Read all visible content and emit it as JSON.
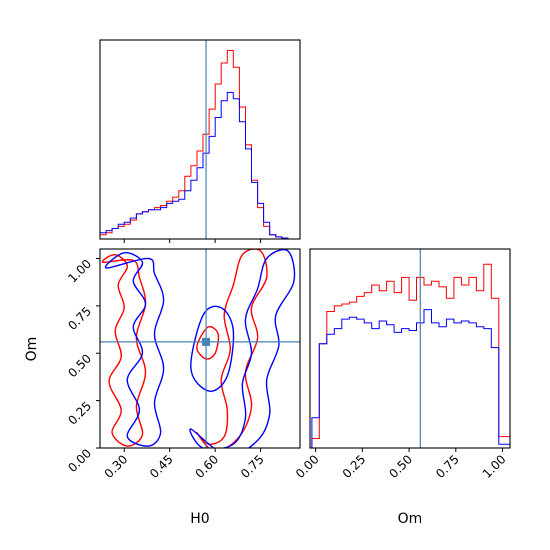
{
  "chart_data": [
    {
      "type": "histogram",
      "panel": "H0 marginal",
      "xlim": [
        0.22,
        0.88
      ],
      "truth": 0.57,
      "series": [
        {
          "color": "#ff0000",
          "bin_edges": [
            0.22,
            0.24,
            0.26,
            0.28,
            0.3,
            0.32,
            0.34,
            0.36,
            0.38,
            0.4,
            0.42,
            0.44,
            0.46,
            0.48,
            0.5,
            0.52,
            0.54,
            0.56,
            0.58,
            0.6,
            0.62,
            0.64,
            0.66,
            0.68,
            0.7,
            0.72,
            0.74,
            0.76,
            0.78,
            0.8,
            0.82,
            0.84,
            0.86,
            0.88
          ],
          "values": [
            0.02,
            0.03,
            0.05,
            0.06,
            0.07,
            0.09,
            0.12,
            0.13,
            0.14,
            0.15,
            0.16,
            0.18,
            0.2,
            0.23,
            0.3,
            0.35,
            0.42,
            0.5,
            0.62,
            0.74,
            0.84,
            0.9,
            0.82,
            0.63,
            0.45,
            0.28,
            0.15,
            0.06,
            0.02,
            0.01,
            0.005,
            0.0,
            0.0
          ]
        },
        {
          "color": "#0000ff",
          "bin_edges": [
            0.22,
            0.24,
            0.26,
            0.28,
            0.3,
            0.32,
            0.34,
            0.36,
            0.38,
            0.4,
            0.42,
            0.44,
            0.46,
            0.48,
            0.5,
            0.52,
            0.54,
            0.56,
            0.58,
            0.6,
            0.62,
            0.64,
            0.66,
            0.68,
            0.7,
            0.72,
            0.74,
            0.76,
            0.78,
            0.8,
            0.82,
            0.84,
            0.86,
            0.88
          ],
          "values": [
            0.03,
            0.04,
            0.05,
            0.07,
            0.08,
            0.1,
            0.12,
            0.13,
            0.14,
            0.14,
            0.15,
            0.17,
            0.18,
            0.19,
            0.23,
            0.28,
            0.34,
            0.41,
            0.49,
            0.58,
            0.66,
            0.7,
            0.67,
            0.56,
            0.43,
            0.27,
            0.17,
            0.08,
            0.02,
            0.01,
            0.005,
            0.0,
            0.0
          ]
        }
      ]
    },
    {
      "type": "contour",
      "panel": "Om vs H0 joint",
      "xlabel": "H0",
      "ylabel": "Om",
      "xlim": [
        0.22,
        0.88
      ],
      "ylim": [
        0.0,
        1.05
      ],
      "xticks": [
        "0.30",
        "0.45",
        "0.60",
        "0.75"
      ],
      "yticks": [
        "0.00",
        "0.25",
        "0.50",
        "0.75",
        "1.00"
      ],
      "truth": {
        "H0": 0.57,
        "Om": 0.56
      },
      "marker_color": "#4682b4",
      "contours": [
        {
          "color": "#ff0000",
          "points": [
            [
              0.23,
              0.98
            ],
            [
              0.27,
              1.02
            ],
            [
              0.31,
              0.96
            ],
            [
              0.28,
              0.86
            ],
            [
              0.3,
              0.74
            ],
            [
              0.27,
              0.62
            ],
            [
              0.29,
              0.48
            ],
            [
              0.25,
              0.35
            ],
            [
              0.29,
              0.2
            ],
            [
              0.26,
              0.08
            ],
            [
              0.31,
              0.01
            ],
            [
              0.36,
              0.07
            ],
            [
              0.34,
              0.22
            ],
            [
              0.37,
              0.4
            ],
            [
              0.34,
              0.58
            ],
            [
              0.37,
              0.76
            ],
            [
              0.35,
              0.9
            ],
            [
              0.33,
              0.99
            ]
          ]
        },
        {
          "color": "#0000ff",
          "points": [
            [
              0.24,
              0.95
            ],
            [
              0.3,
              1.03
            ],
            [
              0.36,
              0.98
            ],
            [
              0.33,
              0.88
            ],
            [
              0.37,
              0.76
            ],
            [
              0.33,
              0.64
            ],
            [
              0.36,
              0.5
            ],
            [
              0.31,
              0.36
            ],
            [
              0.35,
              0.2
            ],
            [
              0.31,
              0.06
            ],
            [
              0.38,
              0.01
            ],
            [
              0.42,
              0.08
            ],
            [
              0.4,
              0.24
            ],
            [
              0.43,
              0.42
            ],
            [
              0.4,
              0.6
            ],
            [
              0.43,
              0.78
            ],
            [
              0.4,
              0.92
            ],
            [
              0.38,
              1.0
            ]
          ]
        },
        {
          "color": "#ff0000",
          "points": [
            [
              0.54,
              0.08
            ],
            [
              0.58,
              0.02
            ],
            [
              0.63,
              0.06
            ],
            [
              0.64,
              0.2
            ],
            [
              0.62,
              0.36
            ],
            [
              0.65,
              0.52
            ],
            [
              0.63,
              0.7
            ],
            [
              0.66,
              0.86
            ],
            [
              0.69,
              1.02
            ],
            [
              0.75,
              1.04
            ],
            [
              0.77,
              0.9
            ],
            [
              0.72,
              0.74
            ],
            [
              0.74,
              0.58
            ],
            [
              0.7,
              0.4
            ],
            [
              0.72,
              0.22
            ],
            [
              0.68,
              0.06
            ],
            [
              0.6,
              -0.02
            ]
          ]
        },
        {
          "color": "#0000ff",
          "points": [
            [
              0.52,
              0.1
            ],
            [
              0.56,
              0.0
            ],
            [
              0.66,
              0.02
            ],
            [
              0.7,
              0.16
            ],
            [
              0.69,
              0.34
            ],
            [
              0.72,
              0.5
            ],
            [
              0.7,
              0.68
            ],
            [
              0.74,
              0.84
            ],
            [
              0.77,
              1.0
            ],
            [
              0.84,
              1.04
            ],
            [
              0.86,
              0.88
            ],
            [
              0.8,
              0.7
            ],
            [
              0.81,
              0.54
            ],
            [
              0.77,
              0.36
            ],
            [
              0.78,
              0.18
            ],
            [
              0.74,
              0.04
            ],
            [
              0.64,
              -0.04
            ]
          ]
        },
        {
          "color": "#ff0000",
          "points": [
            [
              0.55,
              0.58
            ],
            [
              0.58,
              0.64
            ],
            [
              0.61,
              0.6
            ],
            [
              0.6,
              0.5
            ],
            [
              0.57,
              0.47
            ],
            [
              0.54,
              0.52
            ]
          ]
        },
        {
          "color": "#0000ff",
          "points": [
            [
              0.52,
              0.42
            ],
            [
              0.56,
              0.7
            ],
            [
              0.62,
              0.74
            ],
            [
              0.66,
              0.62
            ],
            [
              0.64,
              0.38
            ],
            [
              0.58,
              0.3
            ]
          ]
        }
      ]
    },
    {
      "type": "histogram",
      "panel": "Om marginal",
      "xlabel": "Om",
      "xlim": [
        -0.03,
        1.04
      ],
      "xticks": [
        "0.00",
        "0.25",
        "0.50",
        "0.75",
        "1.00"
      ],
      "truth": 0.56,
      "series": [
        {
          "color": "#ff0000",
          "bin_edges": [
            -0.02,
            0.02,
            0.06,
            0.1,
            0.14,
            0.18,
            0.22,
            0.26,
            0.3,
            0.34,
            0.38,
            0.42,
            0.46,
            0.5,
            0.54,
            0.58,
            0.62,
            0.66,
            0.7,
            0.74,
            0.78,
            0.82,
            0.86,
            0.9,
            0.94,
            0.98,
            1.04
          ],
          "values": [
            0.05,
            0.55,
            0.72,
            0.75,
            0.76,
            0.77,
            0.8,
            0.82,
            0.86,
            0.83,
            0.88,
            0.82,
            0.9,
            0.78,
            0.9,
            0.86,
            0.88,
            0.85,
            0.79,
            0.9,
            0.86,
            0.9,
            0.83,
            0.97,
            0.79,
            0.06
          ]
        },
        {
          "color": "#0000ff",
          "bin_edges": [
            -0.02,
            0.02,
            0.06,
            0.1,
            0.14,
            0.18,
            0.22,
            0.26,
            0.3,
            0.34,
            0.38,
            0.42,
            0.46,
            0.5,
            0.54,
            0.58,
            0.62,
            0.66,
            0.7,
            0.74,
            0.78,
            0.82,
            0.86,
            0.9,
            0.94,
            0.98,
            1.04
          ],
          "values": [
            0.16,
            0.55,
            0.6,
            0.63,
            0.68,
            0.69,
            0.68,
            0.66,
            0.63,
            0.67,
            0.65,
            0.61,
            0.63,
            0.62,
            0.66,
            0.73,
            0.66,
            0.64,
            0.68,
            0.66,
            0.67,
            0.66,
            0.64,
            0.63,
            0.53,
            0.02
          ]
        }
      ]
    }
  ]
}
